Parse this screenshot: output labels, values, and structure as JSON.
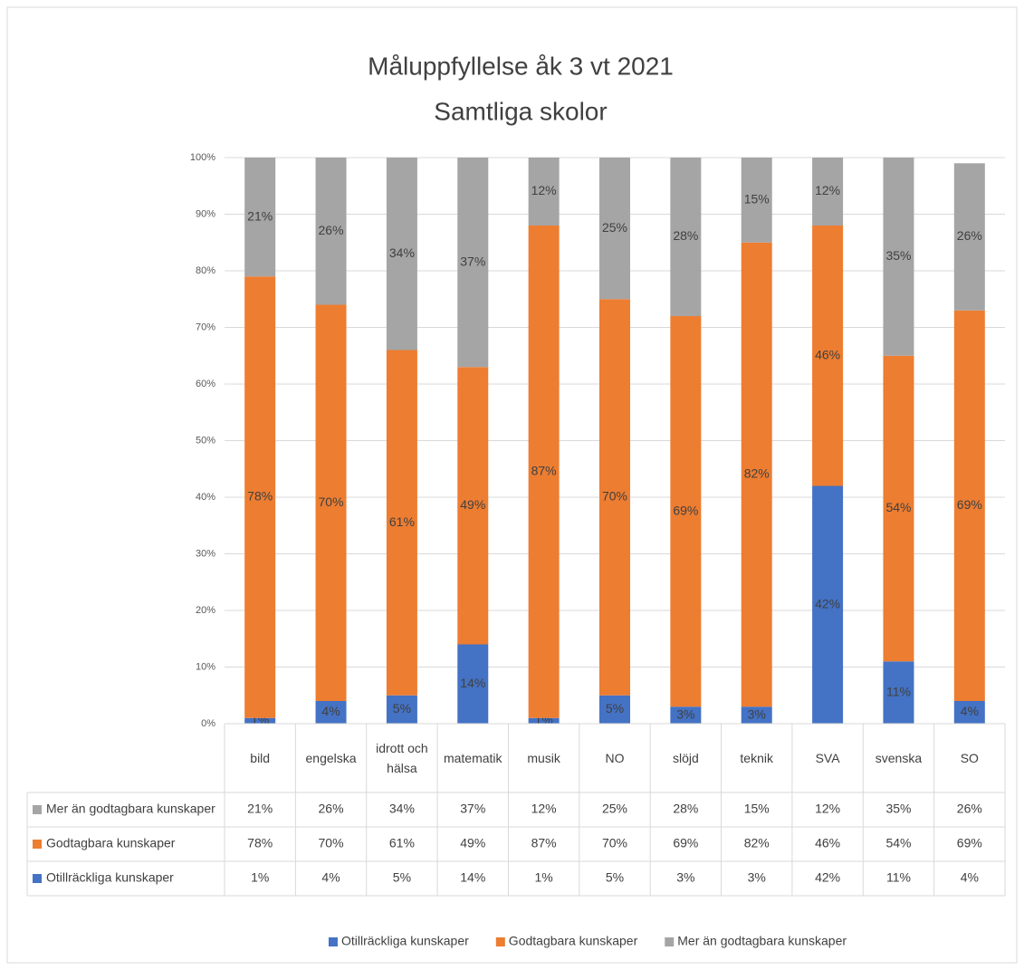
{
  "chart_data": {
    "type": "bar",
    "stacked": true,
    "title": "Måluppfyllelse åk 3 vt 2021",
    "subtitle": "Samtliga skolor",
    "categories": [
      "bild",
      "engelska",
      "idrott och hälsa",
      "matematik",
      "musik",
      "NO",
      "slöjd",
      "teknik",
      "SVA",
      "svenska",
      "SO"
    ],
    "series": [
      {
        "name": "Otillräckliga kunskaper",
        "color": "#4472c4",
        "values": [
          1,
          4,
          5,
          14,
          1,
          5,
          3,
          3,
          42,
          11,
          4
        ],
        "value_labels": [
          "1%",
          "4%",
          "5%",
          "14%",
          "1%",
          "5%",
          "3%",
          "3%",
          "42%",
          "11%",
          "4%"
        ]
      },
      {
        "name": "Godtagbara kunskaper",
        "color": "#ed7d31",
        "values": [
          78,
          70,
          61,
          49,
          87,
          70,
          69,
          82,
          46,
          54,
          69
        ],
        "value_labels": [
          "78%",
          "70%",
          "61%",
          "49%",
          "87%",
          "70%",
          "69%",
          "82%",
          "46%",
          "54%",
          "69%"
        ]
      },
      {
        "name": "Mer än godtagbara kunskaper",
        "color": "#a5a5a5",
        "values": [
          21,
          26,
          34,
          37,
          12,
          25,
          28,
          15,
          12,
          35,
          26
        ],
        "value_labels": [
          "21%",
          "26%",
          "34%",
          "37%",
          "12%",
          "25%",
          "28%",
          "15%",
          "12%",
          "35%",
          "26%"
        ]
      }
    ],
    "ylim": [
      0,
      100
    ],
    "yticks": [
      {
        "value": 0,
        "label": "0%"
      },
      {
        "value": 10,
        "label": "10%"
      },
      {
        "value": 20,
        "label": "20%"
      },
      {
        "value": 30,
        "label": "30%"
      },
      {
        "value": 40,
        "label": "40%"
      },
      {
        "value": 50,
        "label": "50%"
      },
      {
        "value": 60,
        "label": "60%"
      },
      {
        "value": 70,
        "label": "70%"
      },
      {
        "value": 80,
        "label": "80%"
      },
      {
        "value": 90,
        "label": "90%"
      },
      {
        "value": 100,
        "label": "100%"
      }
    ],
    "grid": true,
    "legend": "bottom",
    "data_table": true
  }
}
